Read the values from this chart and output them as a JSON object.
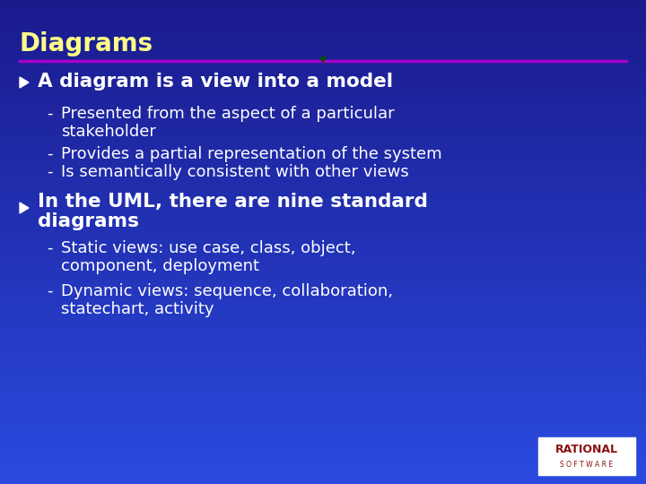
{
  "title": "Diagrams",
  "title_color": "#FFFF88",
  "title_fontsize": 20,
  "bg_color_top": "#1a1a8c",
  "bg_color_bottom": "#2a4adf",
  "separator_color": "#aa00cc",
  "bullet1_header": "A diagram is a view into a model",
  "bullet1_sub_line1a": "Presented from the aspect of a particular",
  "bullet1_sub_line1b": "stakeholder",
  "bullet1_sub_line2": "Provides a partial representation of the system",
  "bullet1_sub_line3": "Is semantically consistent with other views",
  "bullet2_header_line1": "In the UML, there are nine standard",
  "bullet2_header_line2": "diagrams",
  "bullet2_sub_line1a": "Static views: use case, class, object,",
  "bullet2_sub_line1b": "component, deployment",
  "bullet2_sub_line2a": "Dynamic views: sequence, collaboration,",
  "bullet2_sub_line2b": "statechart, activity",
  "text_color": "#FFFFFF",
  "dash_color": "#FFFFFF",
  "rational_text": "#8B1010",
  "rational_software": "SOFTWARE"
}
